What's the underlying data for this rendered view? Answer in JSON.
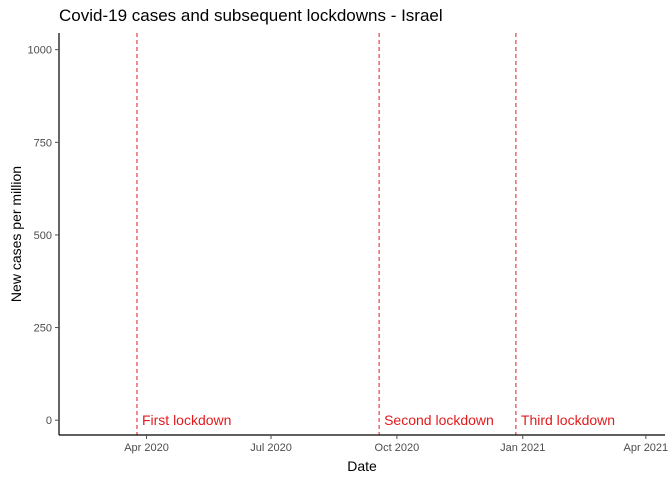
{
  "chart_data": {
    "type": "line",
    "title": "Covid-19 cases and subsequent lockdowns - Israel",
    "xlabel": "Date",
    "ylabel": "New cases per million",
    "xlim": [
      "2020-01-28",
      "2021-04-15"
    ],
    "ylim": [
      -40,
      1045
    ],
    "y_ticks": [
      0,
      250,
      500,
      750,
      1000
    ],
    "x_ticks": [
      {
        "date": "2020-04-01",
        "label": "Apr 2020"
      },
      {
        "date": "2020-07-01",
        "label": "Jul 2020"
      },
      {
        "date": "2020-10-01",
        "label": "Oct 2020"
      },
      {
        "date": "2021-01-01",
        "label": "Jan 2021"
      },
      {
        "date": "2021-04-01",
        "label": "Apr 2021"
      }
    ],
    "series": [],
    "lockdowns": [
      {
        "date": "2020-03-25",
        "label": "First lockdown"
      },
      {
        "date": "2020-09-18",
        "label": "Second lockdown"
      },
      {
        "date": "2020-12-27",
        "label": "Third lockdown"
      }
    ],
    "grid": false,
    "lockdown_color": "#e31a1c",
    "axis_color": "#000000",
    "tick_color": "#4d4d4d"
  }
}
